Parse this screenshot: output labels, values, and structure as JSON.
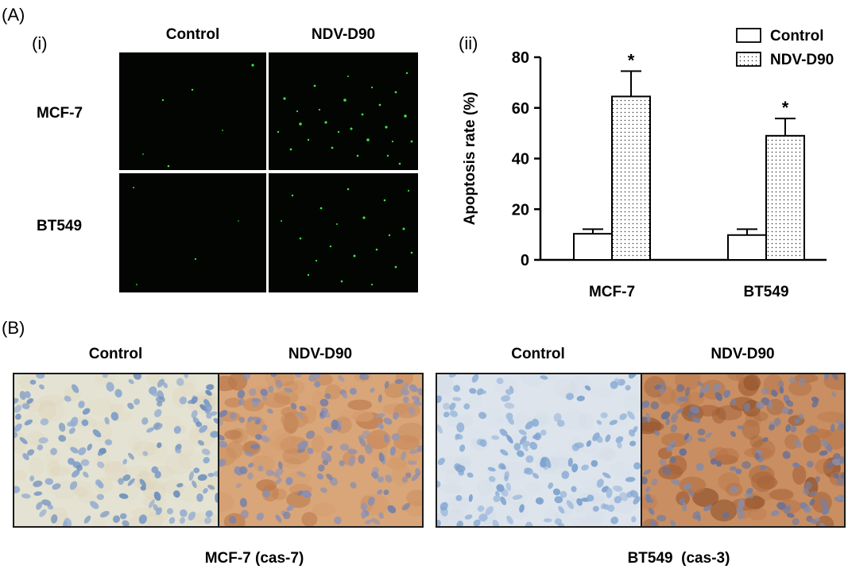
{
  "panel_a": {
    "letter": "(A)",
    "sub_i": "(i)",
    "sub_ii": "(ii)",
    "col_control": "Control",
    "col_ndv": "NDV-D90",
    "row_mcf7": "MCF-7",
    "row_bt549": "BT549"
  },
  "panel_b": {
    "letter": "(B)",
    "head_control_1": "Control",
    "head_ndv_1": "NDV-D90",
    "head_control_2": "Control",
    "head_ndv_2": "NDV-D90",
    "caption_left": "MCF-7 (cas-7)",
    "caption_right": "BT549  (cas-3)"
  },
  "colors": {
    "fluor_bg": "#020502",
    "fluor_dot": "#38e83a",
    "ihc_control_bg": "#e4e2d2",
    "ihc_ndv_bg": "#d9a679",
    "nucleus_blue": "#7f9ec8"
  },
  "chart_data": {
    "type": "bar",
    "categories": [
      "MCF-7",
      "BT549"
    ],
    "series": [
      {
        "name": "Control",
        "values": [
          10.3,
          9.8
        ],
        "errors": [
          1.8,
          2.3
        ],
        "fill": "open"
      },
      {
        "name": "NDV-D90",
        "values": [
          64.5,
          49.0
        ],
        "errors": [
          10.0,
          6.8
        ],
        "fill": "dotted"
      }
    ],
    "significance": [
      "*",
      "*"
    ],
    "ylabel": "Apoptosis rate (%)",
    "xlabel": "",
    "ylim": [
      0,
      80
    ],
    "yticks": [
      0,
      20,
      40,
      60,
      80
    ],
    "legend_position": "top-right",
    "grid": false
  }
}
